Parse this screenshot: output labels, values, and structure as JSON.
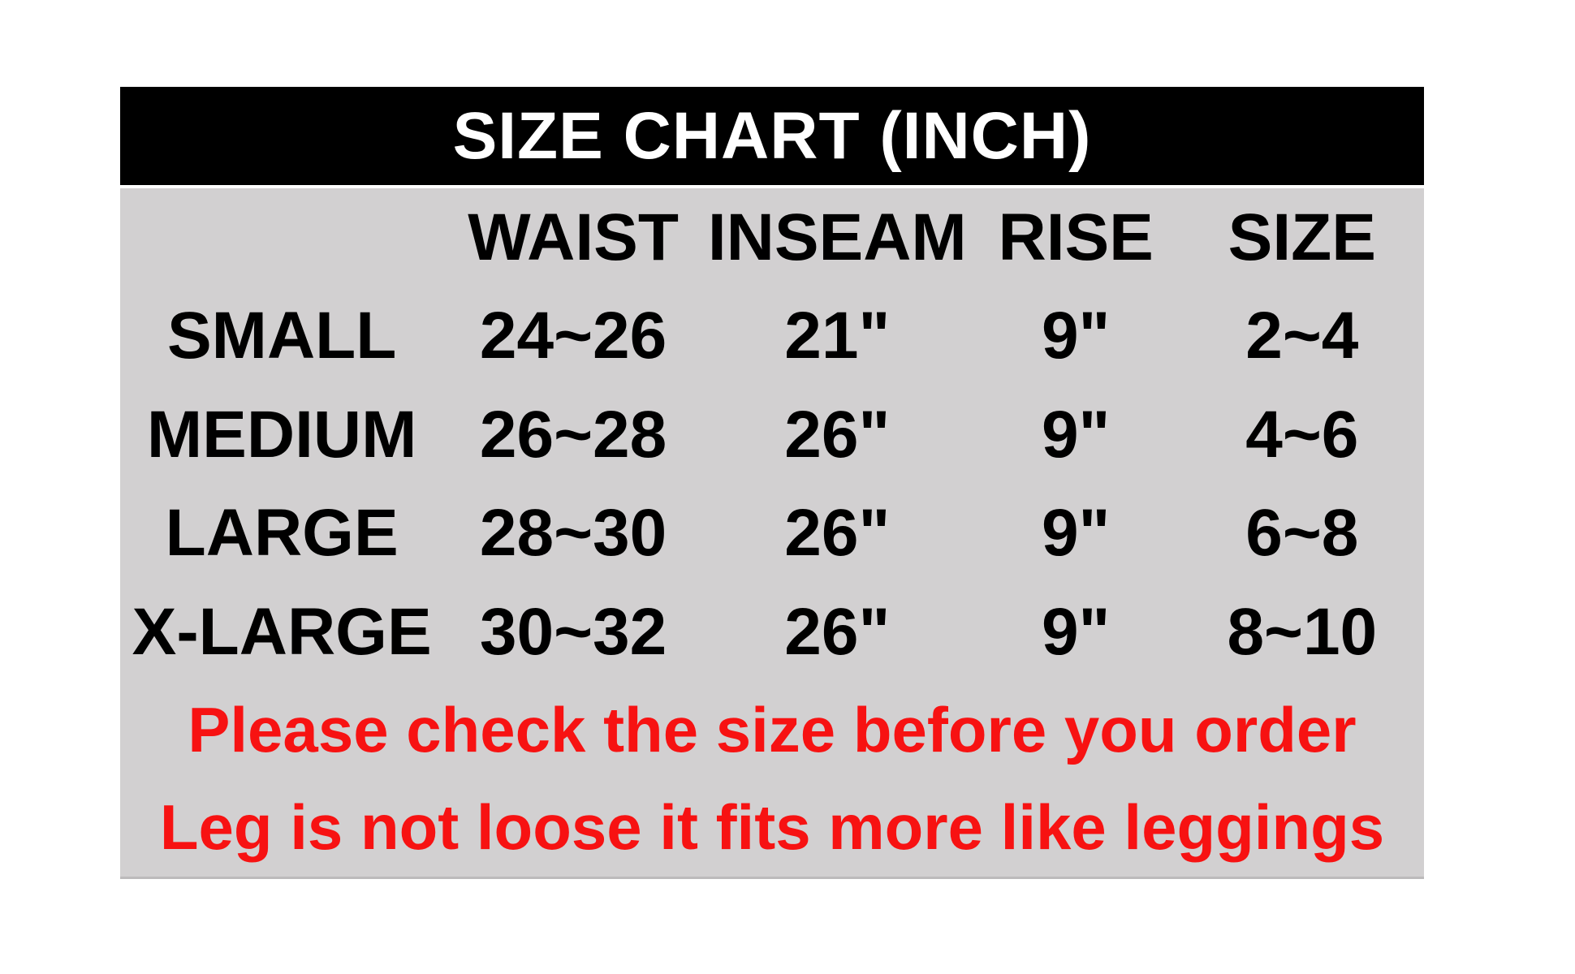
{
  "chart_data": {
    "type": "table",
    "title": "SIZE CHART (INCH)",
    "columns": [
      "",
      "WAIST",
      "INSEAM",
      "RISE",
      "SIZE"
    ],
    "rows": [
      [
        "SMALL",
        "24~26",
        "21\"",
        "9\"",
        "2~4"
      ],
      [
        "MEDIUM",
        "26~28",
        "26\"",
        "9\"",
        "4~6"
      ],
      [
        "LARGE",
        "28~30",
        "26\"",
        "9\"",
        "6~8"
      ],
      [
        "X-LARGE",
        "30~32",
        "26\"",
        "9\"",
        "8~10"
      ]
    ],
    "notes": [
      "Please check the size before you order",
      "Leg is not loose it fits more like leggings"
    ]
  },
  "colors": {
    "header_bg": "#000000",
    "header_text": "#ffffff",
    "panel_bg": "#d2d0d1",
    "table_text": "#000000",
    "note_text": "#f71212"
  }
}
